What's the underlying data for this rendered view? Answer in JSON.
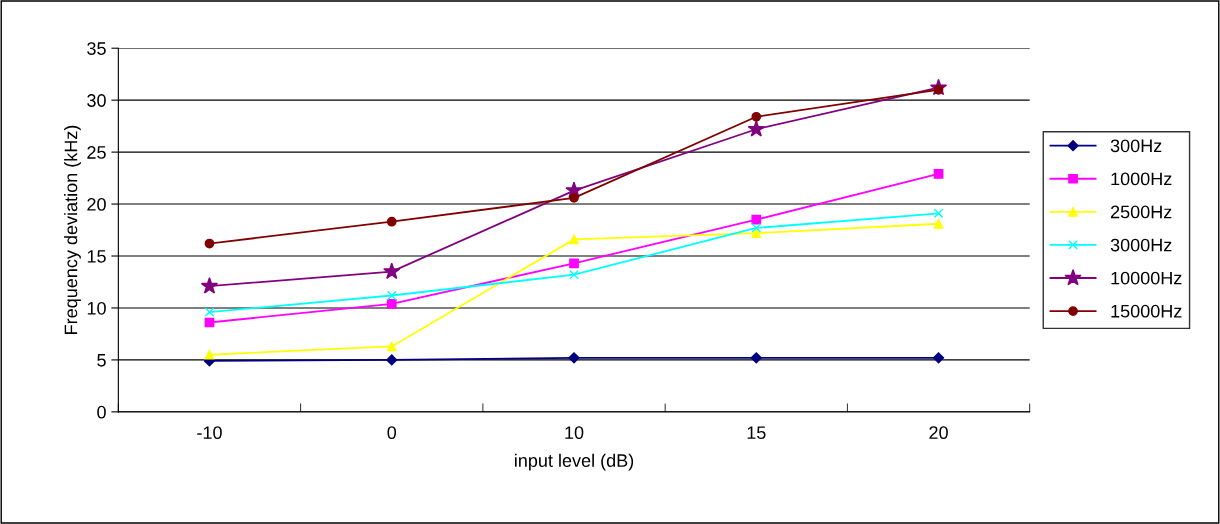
{
  "chart_data": {
    "type": "line",
    "xlabel": "input level (dB)",
    "ylabel": "Frequency deviation (kHz)",
    "categories": [
      "-10",
      "0",
      "10",
      "15",
      "20"
    ],
    "series": [
      {
        "name": "300Hz",
        "color": "#000080",
        "marker": "diamond",
        "values": [
          4.9,
          5.0,
          5.2,
          5.2,
          5.2
        ]
      },
      {
        "name": "1000Hz",
        "color": "#ff00ff",
        "marker": "square",
        "values": [
          8.6,
          10.4,
          14.3,
          18.5,
          22.9
        ]
      },
      {
        "name": "2500Hz",
        "color": "#ffff00",
        "marker": "triangle",
        "values": [
          5.5,
          6.3,
          16.6,
          17.2,
          18.1
        ]
      },
      {
        "name": "3000Hz",
        "color": "#00ffff",
        "marker": "cross",
        "values": [
          9.6,
          11.2,
          13.2,
          17.7,
          19.1
        ]
      },
      {
        "name": "10000Hz",
        "color": "#800080",
        "marker": "star",
        "values": [
          12.1,
          13.5,
          21.3,
          27.2,
          31.2
        ]
      },
      {
        "name": "15000Hz",
        "color": "#800000",
        "marker": "circle",
        "values": [
          16.2,
          18.3,
          20.6,
          28.4,
          31.0
        ]
      }
    ],
    "ylim": [
      0,
      35
    ],
    "yticks": [
      0,
      5,
      10,
      15,
      20,
      25,
      30,
      35
    ],
    "grid": "y",
    "legend": "right",
    "line_style": "solid"
  }
}
